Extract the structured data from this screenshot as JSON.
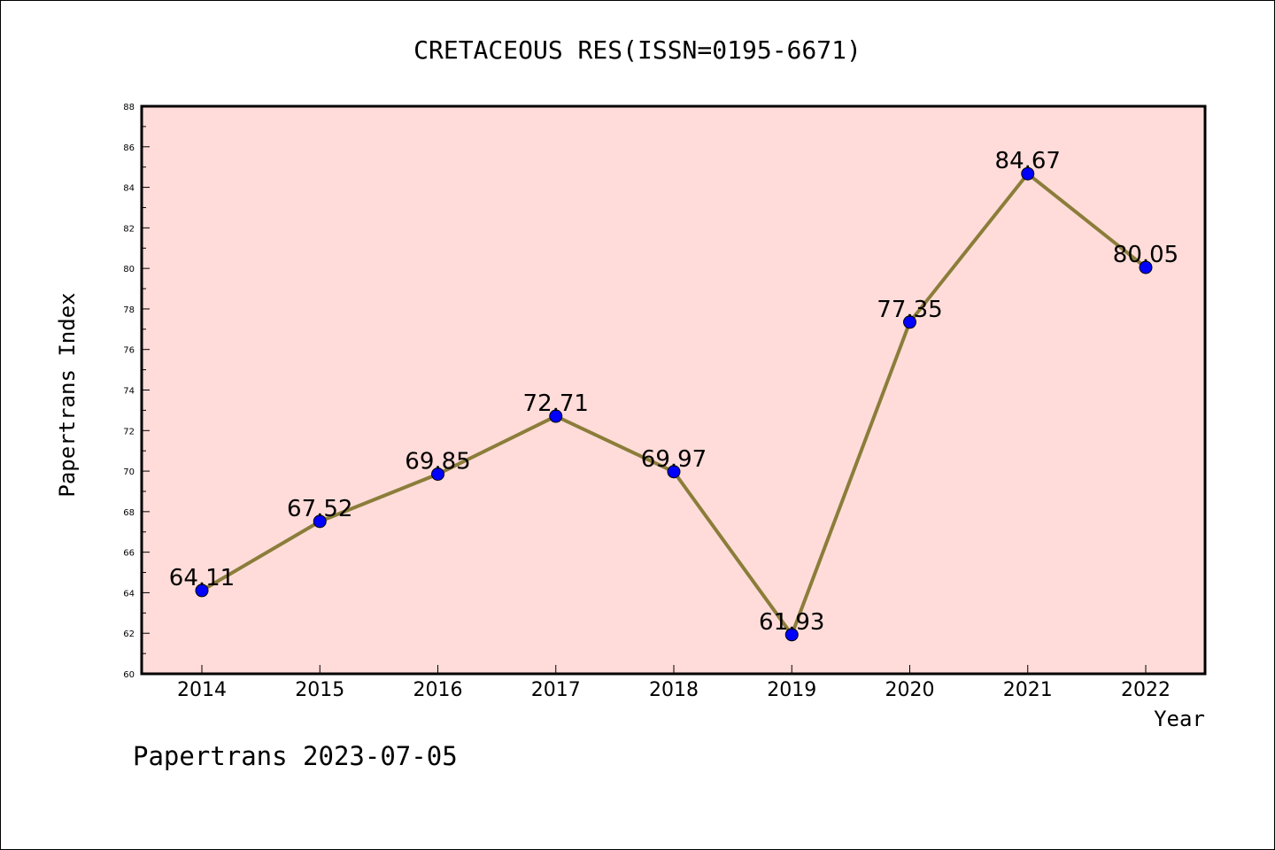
{
  "chart_data": {
    "type": "line",
    "title": "CRETACEOUS RES(ISSN=0195-6671)",
    "xlabel": "Year",
    "ylabel": "Papertrans Index",
    "categories": [
      "2014",
      "2015",
      "2016",
      "2017",
      "2018",
      "2019",
      "2020",
      "2021",
      "2022"
    ],
    "series": [
      {
        "values": [
          64.11,
          67.52,
          69.85,
          72.71,
          69.97,
          61.93,
          77.35,
          84.67,
          80.05
        ],
        "data_labels": [
          "64.11",
          "67.52",
          "69.85",
          "72.71",
          "69.97",
          "61.93",
          "77.35",
          "84.67",
          "80.05"
        ]
      }
    ],
    "ylim": [
      60,
      88
    ],
    "yticks": [
      "60",
      "62",
      "64",
      "66",
      "68",
      "70",
      "72",
      "74",
      "76",
      "78",
      "80",
      "82",
      "84",
      "86",
      "88"
    ],
    "grid": false,
    "colors": {
      "line": "#8b7d3a",
      "marker": "#0000ff",
      "plot_background": "#ffdcd9"
    }
  },
  "footer": "Papertrans 2023-07-05"
}
